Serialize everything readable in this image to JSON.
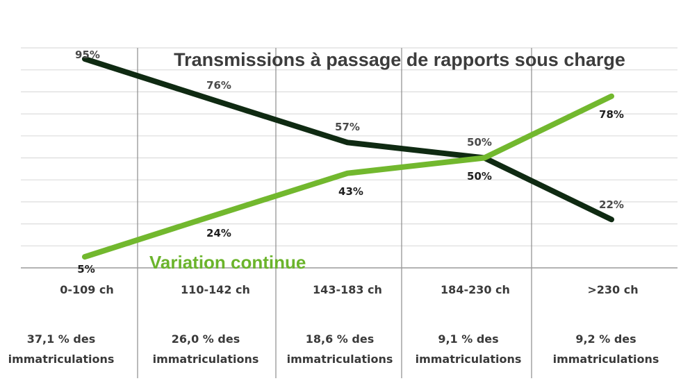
{
  "chart_data": {
    "type": "line",
    "title": "Transmissions à passage de rapports sous charge",
    "categories": [
      "0-109 ch",
      "110-142 ch",
      "143-183 ch",
      "184-230 ch",
      ">230 ch"
    ],
    "category_shares": [
      {
        "line1": "37,1 % des",
        "line2": "immatriculations"
      },
      {
        "line1": "26,0 % des",
        "line2": "immatriculations"
      },
      {
        "line1": "18,6 % des",
        "line2": "immatriculations"
      },
      {
        "line1": "9,1 % des",
        "line2": "immatriculations"
      },
      {
        "line1": "9,2 % des",
        "line2": "immatriculations"
      }
    ],
    "series": [
      {
        "name": "Transmissions à passage de rapports sous charge",
        "color": "#0f2a12",
        "values": [
          95,
          76,
          57,
          50,
          22
        ],
        "labels": [
          "95%",
          "76%",
          "57%",
          "50%",
          "22%"
        ]
      },
      {
        "name": "Variation continue",
        "color": "#72b82e",
        "values": [
          5,
          24,
          43,
          50,
          78
        ],
        "labels": [
          "5%",
          "24%",
          "43%",
          "50%",
          "78%"
        ]
      }
    ],
    "ylim": [
      0,
      100
    ],
    "y_unit": "%",
    "grid": true,
    "gridline_count": 10,
    "legend": "inline labels",
    "xlabel": "",
    "ylabel": ""
  },
  "colors": {
    "dark_series": "#0f2a12",
    "green_series": "#72b82e",
    "green_label": "#6bb42c",
    "grid": "#dcdcdc",
    "divider": "#8c8c8c",
    "text": "#3a3a3a"
  }
}
